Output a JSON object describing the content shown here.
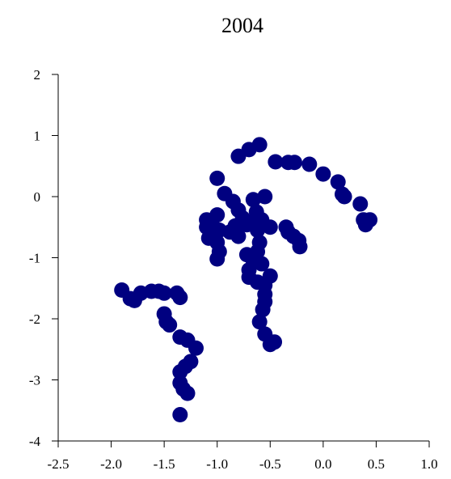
{
  "chart_data": {
    "type": "scatter",
    "title": "2004",
    "xlabel": "",
    "ylabel": "",
    "xlim": [
      -2.5,
      1.0
    ],
    "ylim": [
      -4,
      2
    ],
    "x_ticks": [
      "-2.5",
      "-2.0",
      "-1.5",
      "-1.0",
      "-0.5",
      "0.0",
      "0.5",
      "1.0"
    ],
    "y_ticks": [
      "2",
      "1",
      "0",
      "-1",
      "-2",
      "-3",
      "-4"
    ],
    "grid": false,
    "legend": "none",
    "point_color": "#000080",
    "series": [
      {
        "points": [
          [
            -0.6,
            0.85
          ],
          [
            -0.7,
            0.77
          ],
          [
            -0.8,
            0.66
          ],
          [
            -0.45,
            0.57
          ],
          [
            -0.33,
            0.56
          ],
          [
            -0.27,
            0.56
          ],
          [
            -0.13,
            0.53
          ],
          [
            0.0,
            0.37
          ],
          [
            0.14,
            0.24
          ],
          [
            0.18,
            0.04
          ],
          [
            0.2,
            0.0
          ],
          [
            0.35,
            -0.12
          ],
          [
            0.38,
            -0.38
          ],
          [
            0.4,
            -0.46
          ],
          [
            0.44,
            -0.38
          ],
          [
            -1.0,
            0.3
          ],
          [
            -0.93,
            0.05
          ],
          [
            -0.85,
            -0.08
          ],
          [
            -0.8,
            -0.22
          ],
          [
            -0.76,
            -0.35
          ],
          [
            -0.72,
            -0.46
          ],
          [
            -0.66,
            -0.05
          ],
          [
            -0.55,
            0.0
          ],
          [
            -0.63,
            -0.25
          ],
          [
            -0.58,
            -0.38
          ],
          [
            -0.5,
            -0.5
          ],
          [
            -0.62,
            -0.55
          ],
          [
            -0.68,
            -0.42
          ],
          [
            -0.83,
            -0.48
          ],
          [
            -0.88,
            -0.58
          ],
          [
            -0.8,
            -0.65
          ],
          [
            -0.6,
            -0.75
          ],
          [
            -0.62,
            -0.9
          ],
          [
            -0.72,
            -0.95
          ],
          [
            -0.66,
            -1.05
          ],
          [
            -0.58,
            -1.1
          ],
          [
            -0.7,
            -1.2
          ],
          [
            -0.7,
            -1.32
          ],
          [
            -0.62,
            -1.4
          ],
          [
            -0.55,
            -1.45
          ],
          [
            -0.55,
            -1.6
          ],
          [
            -0.55,
            -1.72
          ],
          [
            -0.57,
            -1.85
          ],
          [
            -0.6,
            -2.05
          ],
          [
            -0.55,
            -2.25
          ],
          [
            -0.5,
            -2.42
          ],
          [
            -0.46,
            -2.38
          ],
          [
            -1.0,
            -0.3
          ],
          [
            -1.1,
            -0.38
          ],
          [
            -1.1,
            -0.5
          ],
          [
            -1.05,
            -0.45
          ],
          [
            -0.98,
            -0.55
          ],
          [
            -1.08,
            -0.68
          ],
          [
            -1.0,
            -0.75
          ],
          [
            -0.98,
            -0.9
          ],
          [
            -1.0,
            -1.02
          ],
          [
            -0.5,
            -1.3
          ],
          [
            -0.35,
            -0.5
          ],
          [
            -0.33,
            -0.58
          ],
          [
            -0.28,
            -0.65
          ],
          [
            -0.23,
            -0.72
          ],
          [
            -0.22,
            -0.82
          ],
          [
            -1.9,
            -1.53
          ],
          [
            -1.82,
            -1.67
          ],
          [
            -1.78,
            -1.7
          ],
          [
            -1.72,
            -1.58
          ],
          [
            -1.62,
            -1.55
          ],
          [
            -1.55,
            -1.55
          ],
          [
            -1.5,
            -1.58
          ],
          [
            -1.38,
            -1.58
          ],
          [
            -1.35,
            -1.65
          ],
          [
            -1.5,
            -1.92
          ],
          [
            -1.48,
            -2.05
          ],
          [
            -1.45,
            -2.1
          ],
          [
            -1.35,
            -2.3
          ],
          [
            -1.28,
            -2.35
          ],
          [
            -1.2,
            -2.48
          ],
          [
            -1.25,
            -2.7
          ],
          [
            -1.3,
            -2.78
          ],
          [
            -1.35,
            -2.87
          ],
          [
            -1.35,
            -3.05
          ],
          [
            -1.32,
            -3.15
          ],
          [
            -1.28,
            -3.22
          ],
          [
            -1.35,
            -3.57
          ]
        ]
      }
    ]
  }
}
